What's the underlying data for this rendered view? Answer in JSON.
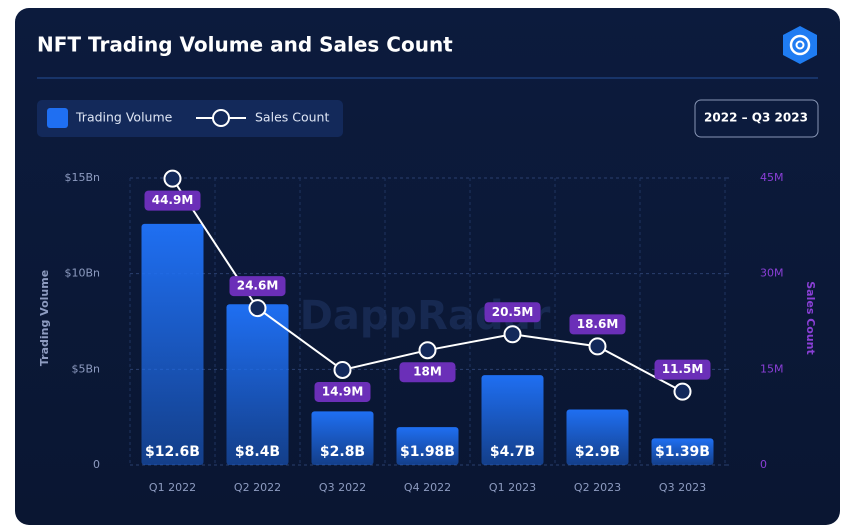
{
  "chart_data": {
    "type": "bar-line",
    "title": "NFT Trading Volume and Sales Count",
    "date_range": "2022 – Q3 2023",
    "watermark": "DappRadar",
    "y_label": "Trading Volume",
    "y2_label": "Sales Count",
    "categories": [
      "Q1 2022",
      "Q2 2022",
      "Q3 2022",
      "Q4 2022",
      "Q1 2023",
      "Q2 2023",
      "Q3 2023"
    ],
    "series": [
      {
        "name": "Trading Volume",
        "type": "bar",
        "color": "#1f6ff2",
        "values": [
          12.6,
          8.4,
          2.8,
          1.98,
          4.7,
          2.9,
          1.39
        ],
        "value_labels": [
          "$12.6B",
          "$8.4B",
          "$2.8B",
          "$1.98B",
          "$4.7B",
          "$2.9B",
          "$1.39B"
        ]
      },
      {
        "name": "Sales Count",
        "type": "line",
        "axis": "y2",
        "color": "#ffffff",
        "label_color": "#6b2fb8",
        "values": [
          44.9,
          24.6,
          14.9,
          18,
          20.5,
          18.6,
          11.5
        ],
        "value_labels": [
          "44.9M",
          "24.6M",
          "14.9M",
          "18M",
          "20.5M",
          "18.6M",
          "11.5M"
        ]
      }
    ],
    "ylim": [
      0,
      15
    ],
    "yticks": [
      0,
      {
        "value": 5,
        "label": "$5Bn"
      },
      {
        "value": 10,
        "label": "$10Bn"
      },
      {
        "value": 15,
        "label": "$15Bn"
      }
    ],
    "y2lim": [
      0,
      45
    ],
    "y2ticks": [
      0,
      {
        "value": 15,
        "label": "15M"
      },
      {
        "value": 30,
        "label": "30M"
      },
      {
        "value": 45,
        "label": "45M"
      }
    ],
    "grid": true
  }
}
